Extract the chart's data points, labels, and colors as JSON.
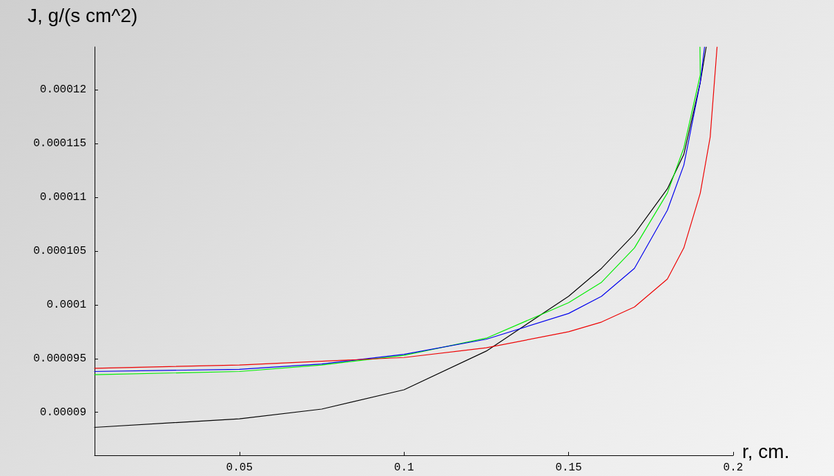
{
  "chart_data": {
    "type": "line",
    "xlabel": "r, cm.",
    "ylabel": "J, g/(s cm^2)",
    "xlim": [
      0.006,
      0.2
    ],
    "xticks": [
      0.05,
      0.1,
      0.15,
      0.2
    ],
    "ylim": [
      8.6e-05,
      0.000124
    ],
    "yticks": [
      {
        "value": 9e-05,
        "label": "0.00009"
      },
      {
        "value": 9.5e-05,
        "label": "0.000095"
      },
      0.0001,
      0.000105,
      0.00011,
      0.000115,
      0.00012
    ],
    "grid": false,
    "marker": "none",
    "line_style": "solid",
    "series": [
      {
        "color": "#000000",
        "x": [
          0.006,
          0.05,
          0.075,
          0.1,
          0.125,
          0.15,
          0.16,
          0.17,
          0.18,
          0.185,
          0.19,
          0.1918
        ],
        "values": [
          8.86e-05,
          8.94e-05,
          9.03e-05,
          9.21e-05,
          9.57e-05,
          0.0001008,
          0.0001034,
          0.0001066,
          0.0001108,
          0.000114,
          0.0001207,
          0.000124
        ]
      },
      {
        "color": "#00ee00",
        "x": [
          0.006,
          0.05,
          0.075,
          0.1,
          0.125,
          0.15,
          0.16,
          0.17,
          0.18,
          0.185,
          0.19,
          0.1899
        ],
        "values": [
          9.35e-05,
          9.38e-05,
          9.44e-05,
          9.53e-05,
          9.69e-05,
          0.0001002,
          0.0001021,
          0.0001053,
          0.0001104,
          0.0001146,
          0.0001214,
          0.000124
        ]
      },
      {
        "color": "#0000ee",
        "x": [
          0.006,
          0.05,
          0.075,
          0.1,
          0.125,
          0.15,
          0.16,
          0.17,
          0.18,
          0.185,
          0.19,
          0.1913
        ],
        "values": [
          9.38e-05,
          9.4e-05,
          9.45e-05,
          9.54e-05,
          9.68e-05,
          9.92e-05,
          0.0001008,
          0.0001034,
          0.0001088,
          0.000113,
          0.0001207,
          0.000124
        ]
      },
      {
        "color": "#ee0000",
        "x": [
          0.006,
          0.05,
          0.1,
          0.125,
          0.15,
          0.16,
          0.17,
          0.18,
          0.185,
          0.19,
          0.193,
          0.1951
        ],
        "values": [
          9.41e-05,
          9.44e-05,
          9.51e-05,
          9.6e-05,
          9.75e-05,
          9.84e-05,
          9.98e-05,
          0.0001024,
          0.0001053,
          0.0001104,
          0.0001156,
          0.000124
        ]
      }
    ]
  }
}
